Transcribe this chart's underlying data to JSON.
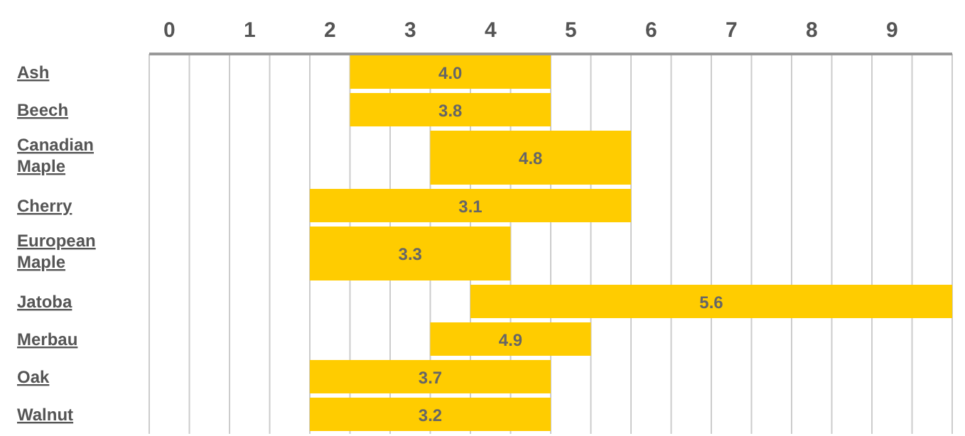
{
  "chart_data": {
    "type": "bar",
    "orientation": "horizontal",
    "categories": [
      "Ash",
      "Beech",
      "Canadian Maple",
      "Cherry",
      "European Maple",
      "Jatoba",
      "Merbau",
      "Oak",
      "Walnut"
    ],
    "base": [
      2.5,
      2.5,
      3.5,
      2,
      2,
      4,
      3.5,
      2,
      2
    ],
    "values": [
      2.5,
      2.5,
      2.5,
      4,
      2.5,
      6,
      2,
      3,
      3
    ],
    "color": "#ffcc00",
    "xlim": [
      0,
      10
    ],
    "xticks": [
      {
        "value": 0,
        "label": null
      },
      {
        "value": 0.25,
        "label": "0"
      },
      {
        "value": 0.5,
        "label": null
      },
      {
        "value": 1,
        "label": null
      },
      {
        "value": 1.25,
        "label": "1"
      },
      {
        "value": 1.5,
        "label": null
      },
      {
        "value": 2,
        "label": null
      },
      {
        "value": 2.25,
        "label": "2"
      },
      {
        "value": 2.5,
        "label": null
      },
      {
        "value": 3,
        "label": null
      },
      {
        "value": 3.25,
        "label": "3"
      },
      {
        "value": 3.5,
        "label": null
      },
      {
        "value": 4,
        "label": null
      },
      {
        "value": 4.25,
        "label": "4"
      },
      {
        "value": 4.5,
        "label": null
      },
      {
        "value": 5,
        "label": null
      },
      {
        "value": 5.25,
        "label": "5"
      },
      {
        "value": 5.5,
        "label": null
      },
      {
        "value": 6,
        "label": null
      },
      {
        "value": 6.25,
        "label": "6"
      },
      {
        "value": 6.5,
        "label": null
      },
      {
        "value": 7,
        "label": null
      },
      {
        "value": 7.25,
        "label": "7"
      },
      {
        "value": 7.5,
        "label": null
      },
      {
        "value": 8,
        "label": null
      },
      {
        "value": 8.25,
        "label": "8"
      },
      {
        "value": 8.5,
        "label": null
      },
      {
        "value": 9,
        "label": null
      },
      {
        "value": 9.25,
        "label": "9"
      },
      {
        "value": 9.5,
        "label": null
      },
      {
        "value": 10,
        "label": null
      }
    ],
    "grid": "x",
    "annotations": [
      "4.0",
      "3.8",
      "4.8",
      "3.1",
      "3.3",
      "5.6",
      "4.9",
      "3.7",
      "3.2"
    ]
  }
}
